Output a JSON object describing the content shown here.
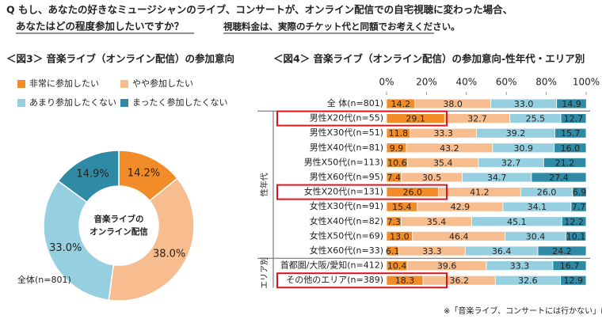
{
  "header": {
    "question_line1": "Q もし、あなたの好きなミュージシャンのライブ、コンサートが、オンライン配信での自宅視聴に変わった場合、",
    "question_line2": "あなたはどの程度参加したいですか？",
    "condition": "視聴料金は、実際のチケット代と同額でお考えください。",
    "footnote": "※「音楽ライブ、コンサートには行かない」は除外して集計"
  },
  "chart_data": [
    {
      "type": "donut",
      "title": "＜図3＞ 音楽ライブ（オンライン配信）の参加意向",
      "center_label": [
        "音楽ライブの",
        "オンライン配信"
      ],
      "base_label": "全体(n=801)",
      "categories": [
        "非常に参加したい",
        "やや参加したい",
        "あまり参加したくない",
        "まったく参加したくない"
      ],
      "values": [
        14.2,
        38.0,
        33.0,
        14.9
      ],
      "value_labels": [
        "14.2%",
        "38.0%",
        "33.0%",
        "14.9%"
      ],
      "colors": [
        "#f28c28",
        "#f8bd8e",
        "#96cfe0",
        "#2f8aa6"
      ]
    },
    {
      "type": "stacked-bar",
      "title": "＜図4＞ 音楽ライブ（オンライン配信）の参加意向-性年代・エリア別",
      "xlim": [
        0,
        100
      ],
      "xticks": [
        {
          "value": 0,
          "label": "0%"
        },
        {
          "value": 20,
          "label": "20%"
        },
        {
          "value": 40,
          "label": "40%"
        },
        {
          "value": 60,
          "label": "60%"
        },
        {
          "value": 80,
          "label": "80%"
        },
        {
          "value": 100,
          "label": "100%"
        }
      ],
      "groups": [
        "性年代",
        "エリア別"
      ],
      "categories": [
        "全 体(n=801)",
        "男性X20代(n=55)",
        "男性X30代(n=51)",
        "男性X40代(n=81)",
        "男性X50代(n=113)",
        "男性X60代(n=95)",
        "女性X20代(n=131)",
        "女性X30代(n=91)",
        "女性X40代(n=82)",
        "女性X50代(n=69)",
        "女性X60代(n=33)",
        "首都圏/大阪/愛知(n=412)",
        "その他のエリア(n=389)"
      ],
      "series": [
        {
          "color": "#f28c28",
          "values": [
            14.2,
            29.1,
            11.8,
            9.9,
            10.6,
            7.4,
            26.0,
            15.4,
            7.3,
            13.0,
            6.1,
            10.4,
            18.3
          ],
          "value_labels": [
            "14.2",
            "29.1",
            "11.8",
            "9.9",
            "10.6",
            "7.4",
            "26.0",
            "15.4",
            "7.3",
            "13.0",
            "6.1",
            "10.4",
            "18.3"
          ]
        },
        {
          "color": "#f8bd8e",
          "values": [
            38.0,
            32.7,
            33.3,
            43.2,
            35.4,
            30.5,
            41.2,
            42.9,
            35.4,
            46.4,
            33.3,
            39.6,
            36.2
          ],
          "value_labels": [
            "38.0",
            "32.7",
            "33.3",
            "43.2",
            "35.4",
            "30.5",
            "41.2",
            "42.9",
            "35.4",
            "46.4",
            "33.3",
            "39.6",
            "36.2"
          ]
        },
        {
          "color": "#96cfe0",
          "values": [
            33.0,
            25.5,
            39.2,
            30.9,
            32.7,
            34.7,
            26.0,
            34.1,
            45.1,
            30.4,
            36.4,
            33.3,
            32.6
          ],
          "value_labels": [
            "33.0",
            "25.5",
            "39.2",
            "30.9",
            "32.7",
            "34.7",
            "26.0",
            "34.1",
            "45.1",
            "30.4",
            "36.4",
            "33.3",
            "32.6"
          ]
        },
        {
          "color": "#2f8aa6",
          "values": [
            14.9,
            12.7,
            15.7,
            16.0,
            21.2,
            27.4,
            6.9,
            7.7,
            12.2,
            10.1,
            24.2,
            16.7,
            12.9
          ],
          "value_labels": [
            "14.9",
            "12.7",
            "15.7",
            "16.0",
            "21.2",
            "27.4",
            "6.9",
            "7.7",
            "12.2",
            "10.1",
            "24.2",
            "16.7",
            "12.9"
          ]
        }
      ]
    }
  ]
}
